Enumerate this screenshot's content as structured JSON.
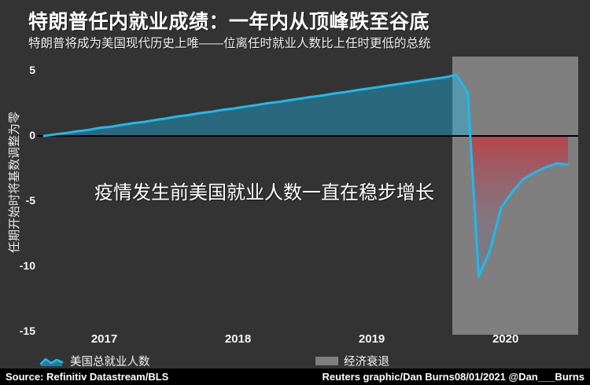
{
  "header": {
    "title": "特朗普任内就业成绩：一年内从顶峰跌至谷底",
    "subtitle": "特朗普将成为美国现代历史上唯——位离任时就业人数比上任时更低的总统"
  },
  "chart_data": {
    "type": "area",
    "title": "特朗普任内就业成绩：一年内从顶峰跌至谷底",
    "y_axis_label": "任期开始时将基数调整为零",
    "annotation": "疫情发生前美国就业人数一直在稳步增长",
    "x_tick_labels": [
      "2017",
      "2018",
      "2019",
      "2020"
    ],
    "y_ticks": [
      5,
      0,
      -5,
      -10,
      -15
    ],
    "ylim": [
      -15,
      6
    ],
    "grid": false,
    "legend_position": "bottom",
    "months": [
      "2017-01",
      "2017-02",
      "2017-03",
      "2017-04",
      "2017-05",
      "2017-06",
      "2017-07",
      "2017-08",
      "2017-09",
      "2017-10",
      "2017-11",
      "2017-12",
      "2018-01",
      "2018-02",
      "2018-03",
      "2018-04",
      "2018-05",
      "2018-06",
      "2018-07",
      "2018-08",
      "2018-09",
      "2018-10",
      "2018-11",
      "2018-12",
      "2019-01",
      "2019-02",
      "2019-03",
      "2019-04",
      "2019-05",
      "2019-06",
      "2019-07",
      "2019-08",
      "2019-09",
      "2019-10",
      "2019-11",
      "2019-12",
      "2020-01",
      "2020-02",
      "2020-03",
      "2020-04",
      "2020-05",
      "2020-06",
      "2020-07",
      "2020-08",
      "2020-09",
      "2020-10",
      "2020-11",
      "2020-12"
    ],
    "series": [
      {
        "name": "美国总就业人数",
        "values": [
          0.0,
          0.12,
          0.22,
          0.36,
          0.46,
          0.62,
          0.7,
          0.85,
          0.98,
          1.08,
          1.22,
          1.35,
          1.5,
          1.6,
          1.75,
          1.85,
          2.0,
          2.1,
          2.24,
          2.36,
          2.5,
          2.6,
          2.74,
          2.86,
          3.0,
          3.1,
          3.25,
          3.36,
          3.5,
          3.62,
          3.75,
          3.88,
          4.0,
          4.12,
          4.26,
          4.38,
          4.5,
          4.68,
          3.3,
          -10.75,
          -8.8,
          -5.5,
          -4.3,
          -3.3,
          -2.8,
          -2.4,
          -2.1,
          -2.2
        ]
      }
    ],
    "recession_band": {
      "label": "经济衰退",
      "start": "2020-02",
      "end": "2021-01"
    },
    "colors": {
      "line": "#1fb9ee",
      "area_positive": "rgba(31,185,238,0.40)",
      "area_negative_top": "#c2373f",
      "area_negative_mid": "#8c6a7c",
      "area_negative_bottom": "#5f7b95",
      "band": "#7f7f7f",
      "zero_line": "#000000",
      "background": "#333333"
    }
  },
  "legend": {
    "series_label": "美国总就业人数",
    "recession_label": "经济衰退"
  },
  "footer": {
    "source": "Source: Refinitiv Datastream/BLS",
    "credit": "Reuters graphic/Dan Burns08/01/2021 @Dan___Burns"
  }
}
